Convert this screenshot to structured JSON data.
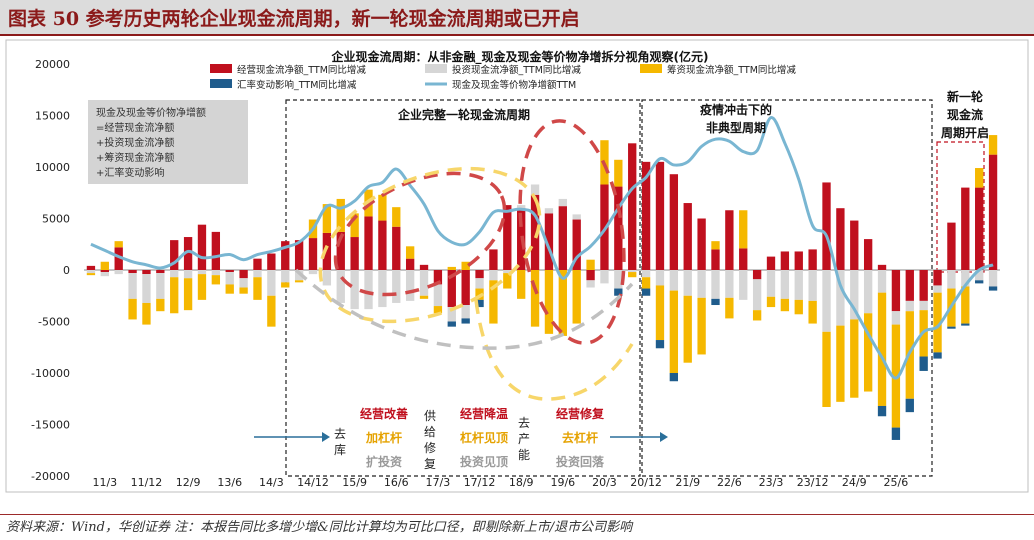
{
  "figure_title": "图表 50   参考历史两轮企业现金流周期，新一轮现金流周期或已开启",
  "source_note": "资料来源：Wind，华创证券  注：本报告同比多增少增&同比计算均为可比口径，即剔除新上市/退市公司影响",
  "colors": {
    "operating": "#c0101e",
    "investing": "#d6d6d6",
    "financing": "#f5b800",
    "fx": "#1f5c8c",
    "cash_line": "#79b6d2",
    "red_dash": "#d04848",
    "yellow_dash": "#f7d66a",
    "gray_dash": "#c0c0c0",
    "box": "#222222"
  },
  "annotations": {
    "formula": [
      "现金及现金等价物净增额",
      "=经营现金流净额",
      "+投资现金流净额",
      "+筹资现金流净额",
      "+汇率变动影响"
    ],
    "cycle1_label": "企业完整一轮现金流周期",
    "cycle2_label": [
      "疫情冲击下的",
      "非典型周期"
    ],
    "cycle3_label": [
      "新一轮",
      "现金流",
      "周期开启"
    ],
    "qu_ku": [
      "去",
      "库"
    ],
    "supply": [
      "供",
      "给",
      "修",
      "复"
    ],
    "qu_chan_neng": [
      "去",
      "产",
      "能"
    ],
    "phase1": [
      "经营改善",
      "加杠杆",
      "扩投资"
    ],
    "phase2": [
      "经营降温",
      "杠杆见顶",
      "投资见顶"
    ],
    "phase3": [
      "经营修复",
      "去杠杆",
      "投资回落"
    ]
  },
  "chart_data": {
    "type": "bar",
    "stacked": true,
    "title": "企业现金流周期：从非金融_现金及现金等价物净增拆分视角观察(亿元)",
    "ylim": [
      -20000,
      20000
    ],
    "yticks": [
      20000,
      15000,
      10000,
      5000,
      0,
      -5000,
      -10000,
      -15000,
      -20000
    ],
    "ytick_labels": [
      "20000",
      "15000",
      "10000",
      "5000",
      "0",
      "-5000",
      "-10000",
      "-15000",
      "-20000"
    ],
    "x_tick_labels": [
      "11/3",
      "11/12",
      "12/9",
      "13/6",
      "14/3",
      "14/12",
      "15/9",
      "16/6",
      "17/3",
      "17/12",
      "18/9",
      "19/6",
      "20/3",
      "20/12",
      "21/9",
      "22/6",
      "23/3",
      "23/12",
      "24/9",
      "25/6"
    ],
    "legend": [
      "经营现金流净额_TTM同比增减",
      "投资现金流净额_TTM同比增减",
      "筹资现金流净额_TTM同比增减",
      "汇率变动影响_TTM同比增减",
      "现金及现金等价物净增额TTM"
    ],
    "grid": false,
    "series": [
      {
        "name": "经营现金流净额_TTM同比增减",
        "type": "bar",
        "values": [
          400,
          -200,
          2200,
          -300,
          -400,
          -300,
          2900,
          3200,
          4400,
          3700,
          -200,
          -800,
          1100,
          1600,
          2800,
          2900,
          3100,
          3600,
          3700,
          3200,
          5200,
          4800,
          4200,
          1100,
          500,
          -1400,
          -3600,
          -3400,
          -800,
          2000,
          6300,
          6000,
          7300,
          5500,
          6200,
          4900,
          -1000,
          8300,
          8100,
          12300,
          10500,
          10500,
          9300,
          6500,
          5000,
          2000,
          5800,
          2100,
          -900,
          1300,
          1800,
          1800,
          2000,
          8500,
          6000,
          4800,
          3000,
          500,
          -4000,
          -3000,
          -3000,
          -1500,
          4600,
          8000,
          8000,
          11200
        ]
      },
      {
        "name": "投资现金流净额_TTM同比增减",
        "type": "bar",
        "values": [
          -300,
          -400,
          -400,
          -2500,
          -2800,
          -2500,
          -700,
          -800,
          -400,
          -500,
          -1200,
          -900,
          -700,
          -2500,
          -1200,
          -1000,
          -400,
          -1500,
          -3200,
          -3800,
          -3800,
          -3600,
          -3200,
          -3000,
          -2500,
          -2100,
          -1400,
          -1300,
          -1000,
          -1000,
          -300,
          300,
          1000,
          500,
          700,
          500,
          -700,
          -1300,
          -1800,
          -200,
          -700,
          -1500,
          -2000,
          -2500,
          -2700,
          -2800,
          -2700,
          -2900,
          -3000,
          -2600,
          -2800,
          -2900,
          -3000,
          -6000,
          -5400,
          -4800,
          -4200,
          -2200,
          -1300,
          -1000,
          -900,
          -700,
          -1800,
          -1600,
          -1000,
          -1600
        ]
      },
      {
        "name": "筹资现金流净额_TTM同比增减",
        "type": "bar",
        "values": [
          -200,
          800,
          600,
          -2000,
          -2100,
          -1200,
          -3500,
          -3100,
          -2500,
          -900,
          -900,
          -600,
          -2200,
          -3000,
          -500,
          -200,
          1800,
          2800,
          3200,
          2300,
          2600,
          2500,
          1900,
          1200,
          -300,
          -700,
          300,
          800,
          -1100,
          -4200,
          -1500,
          -2800,
          -5500,
          -6200,
          -6400,
          -5200,
          1000,
          4300,
          2600,
          -500,
          -1100,
          -5300,
          -8000,
          -6500,
          -5500,
          800,
          -2000,
          3700,
          -1000,
          -1000,
          -1200,
          -1400,
          -2200,
          -7300,
          -7400,
          -7600,
          -7600,
          -11000,
          -10000,
          -8500,
          -4500,
          -5800,
          -3700,
          -3600,
          1900,
          1900
        ]
      },
      {
        "name": "汇率变动影响_TTM同比增减",
        "type": "bar",
        "values": [
          0,
          0,
          0,
          0,
          0,
          0,
          0,
          0,
          0,
          0,
          0,
          0,
          0,
          0,
          0,
          0,
          0,
          0,
          0,
          0,
          0,
          0,
          0,
          0,
          0,
          0,
          -500,
          -500,
          -700,
          0,
          0,
          0,
          0,
          0,
          0,
          0,
          0,
          0,
          -700,
          0,
          -700,
          -800,
          -800,
          0,
          0,
          -600,
          0,
          0,
          0,
          0,
          0,
          0,
          0,
          0,
          0,
          0,
          0,
          -1000,
          -1200,
          -1300,
          -1400,
          -600,
          -200,
          -200,
          -300,
          -400
        ]
      },
      {
        "name": "现金及现金等价物净增额TTM",
        "type": "line",
        "values": [
          2500,
          1900,
          1300,
          800,
          500,
          200,
          700,
          1800,
          1200,
          1300,
          1500,
          1000,
          1500,
          1800,
          2200,
          2700,
          4000,
          6200,
          6000,
          6700,
          8100,
          8500,
          9800,
          8200,
          6400,
          3800,
          2700,
          2500,
          3700,
          5600,
          5700,
          5900,
          5300,
          2100,
          -800,
          1200,
          2300,
          3900,
          6000,
          7900,
          9000,
          10800,
          10200,
          10500,
          12000,
          12700,
          12500,
          11500,
          11600,
          14800,
          12300,
          8800,
          4300,
          3300,
          -1500,
          -3800,
          -6200,
          -8500,
          -10500,
          -8000,
          -6000,
          -5500,
          -3500,
          -1500,
          0,
          500
        ]
      }
    ]
  }
}
